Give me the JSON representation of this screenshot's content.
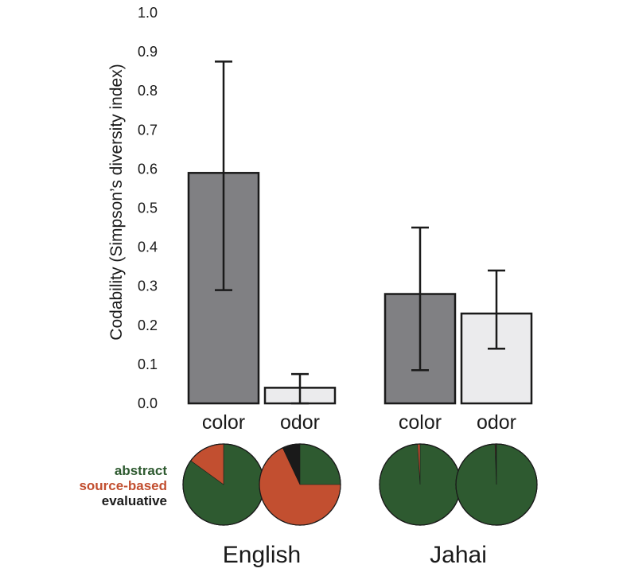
{
  "chart_data": {
    "type": "bar",
    "ylabel": "Codability (Simpson’s diversity index)",
    "ylim": [
      0,
      1.0
    ],
    "yticks": [
      "0.0",
      "0.1",
      "0.2",
      "0.3",
      "0.4",
      "0.5",
      "0.6",
      "0.7",
      "0.8",
      "0.9",
      "1.0"
    ],
    "groups": [
      {
        "name": "English",
        "bars": [
          {
            "category": "color",
            "value": 0.59,
            "err_low": 0.29,
            "err_high": 0.875
          },
          {
            "category": "odor",
            "value": 0.04,
            "err_low": 0.0,
            "err_high": 0.075
          }
        ]
      },
      {
        "name": "Jahai",
        "bars": [
          {
            "category": "color",
            "value": 0.28,
            "err_low": 0.085,
            "err_high": 0.45
          },
          {
            "category": "odor",
            "value": 0.23,
            "err_low": 0.14,
            "err_high": 0.34
          }
        ]
      }
    ],
    "colors": {
      "color_bar": "#808083",
      "odor_bar": "#ebebed"
    },
    "legend": [
      {
        "label": "abstract",
        "color": "#2e5a30"
      },
      {
        "label": "source-based",
        "color": "#c24f30"
      },
      {
        "label": "evaluative",
        "color": "#1a1a1a"
      }
    ],
    "pies": [
      {
        "group": "English",
        "category": "color",
        "slices": [
          0.85,
          0.15,
          0.0
        ]
      },
      {
        "group": "English",
        "category": "odor",
        "slices": [
          0.25,
          0.68,
          0.07
        ]
      },
      {
        "group": "Jahai",
        "category": "color",
        "slices": [
          0.99,
          0.01,
          0.0
        ]
      },
      {
        "group": "Jahai",
        "category": "odor",
        "slices": [
          0.994,
          0.003,
          0.003
        ]
      }
    ]
  }
}
